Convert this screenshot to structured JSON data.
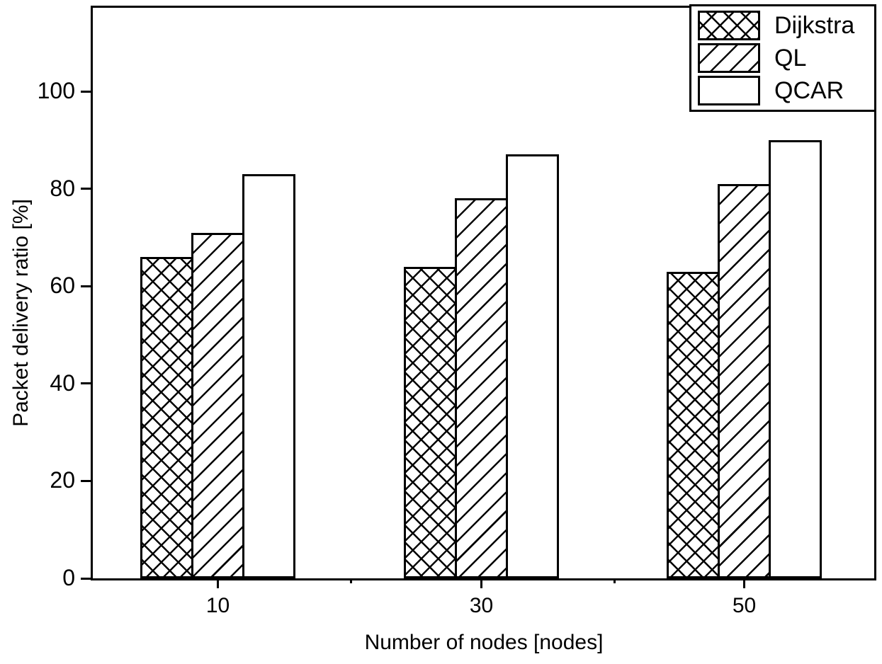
{
  "chart_data": {
    "type": "bar",
    "title": "",
    "xlabel": "Number of nodes [nodes]",
    "ylabel": "Packet delivery ratio [%]",
    "categories": [
      "10",
      "30",
      "50"
    ],
    "series": [
      {
        "name": "Dijkstra",
        "pattern": "crosshatch",
        "values": [
          66,
          64,
          63
        ]
      },
      {
        "name": "QL",
        "pattern": "diagonal",
        "values": [
          71,
          78,
          81
        ]
      },
      {
        "name": "QCAR",
        "pattern": "none",
        "values": [
          83,
          87,
          90
        ]
      }
    ],
    "yticks": [
      0,
      20,
      40,
      60,
      80,
      100
    ],
    "ylim": [
      0,
      118
    ],
    "grid": false,
    "legend_position": "top-right",
    "colors": {
      "foreground": "#000000",
      "background": "#ffffff"
    }
  }
}
